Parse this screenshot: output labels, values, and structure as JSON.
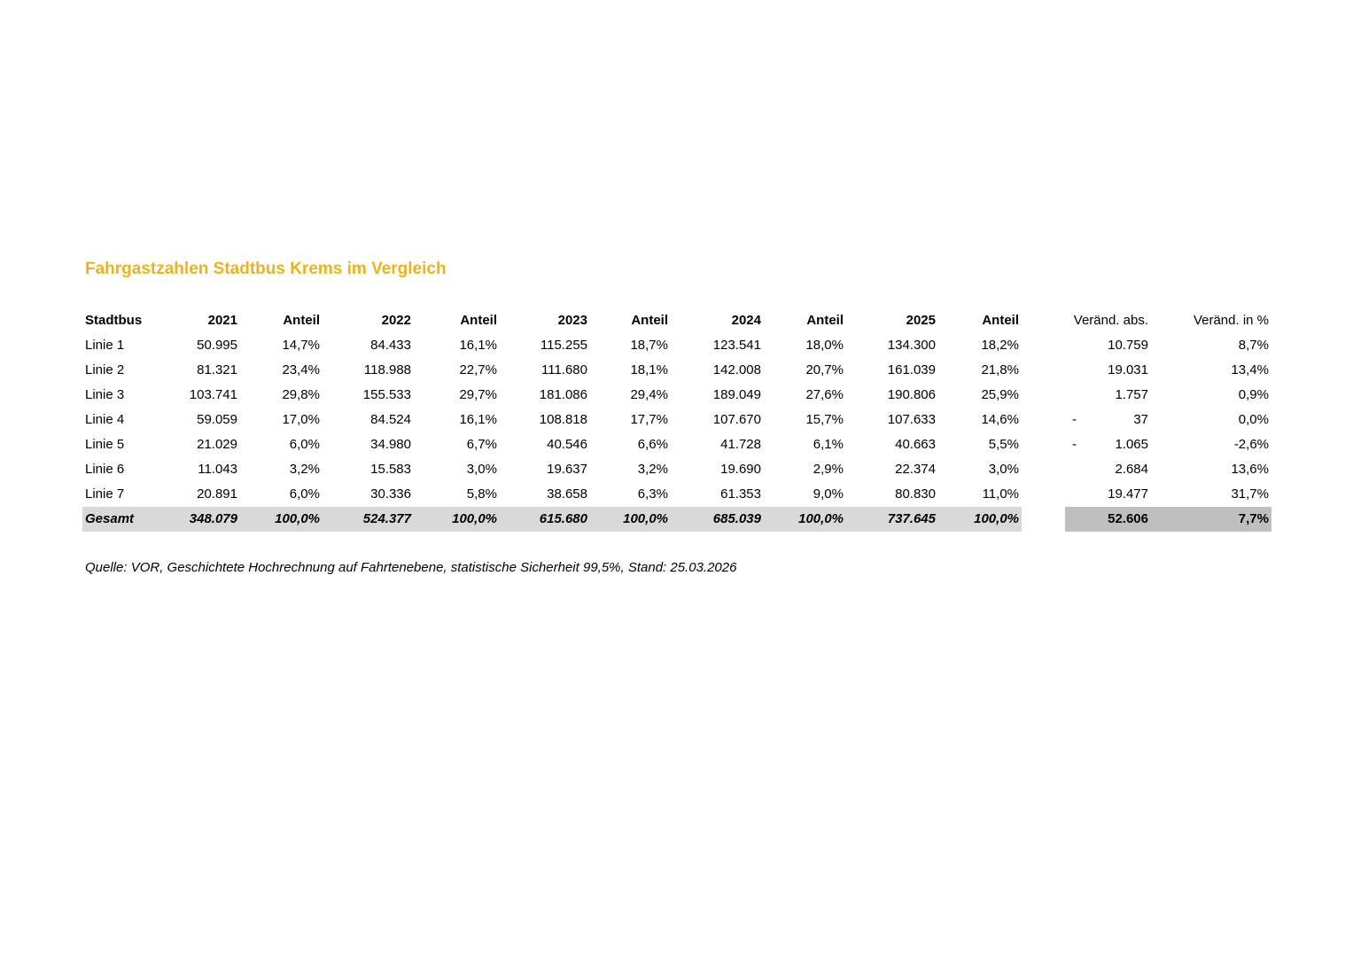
{
  "title": "Fahrgastzahlen Stadtbus Krems im Vergleich",
  "colors": {
    "title_accent": "#EEB21E",
    "total_row_band": "#D9D9D9",
    "total_change_band": "#BFBFBF"
  },
  "table": {
    "columns": [
      "Stadtbus",
      "2021",
      "Anteil",
      "2022",
      "Anteil",
      "2023",
      "Anteil",
      "2024",
      "Anteil",
      "2025",
      "Anteil",
      "Veränd. abs.",
      "Veränd. in %"
    ],
    "rows": [
      {
        "label": "Linie 1",
        "cells": [
          "50.995",
          "14,7%",
          "84.433",
          "16,1%",
          "115.255",
          "18,7%",
          "123.541",
          "18,0%",
          "134.300",
          "18,2%"
        ],
        "change_sign": "",
        "change_abs": "10.759",
        "change_pct": "8,7%"
      },
      {
        "label": "Linie 2",
        "cells": [
          "81.321",
          "23,4%",
          "118.988",
          "22,7%",
          "111.680",
          "18,1%",
          "142.008",
          "20,7%",
          "161.039",
          "21,8%"
        ],
        "change_sign": "",
        "change_abs": "19.031",
        "change_pct": "13,4%"
      },
      {
        "label": "Linie 3",
        "cells": [
          "103.741",
          "29,8%",
          "155.533",
          "29,7%",
          "181.086",
          "29,4%",
          "189.049",
          "27,6%",
          "190.806",
          "25,9%"
        ],
        "change_sign": "",
        "change_abs": "1.757",
        "change_pct": "0,9%"
      },
      {
        "label": "Linie 4",
        "cells": [
          "59.059",
          "17,0%",
          "84.524",
          "16,1%",
          "108.818",
          "17,7%",
          "107.670",
          "15,7%",
          "107.633",
          "14,6%"
        ],
        "change_sign": "-",
        "change_abs": "37",
        "change_pct": "0,0%"
      },
      {
        "label": "Linie 5",
        "cells": [
          "21.029",
          "6,0%",
          "34.980",
          "6,7%",
          "40.546",
          "6,6%",
          "41.728",
          "6,1%",
          "40.663",
          "5,5%"
        ],
        "change_sign": "-",
        "change_abs": "1.065",
        "change_pct": "-2,6%"
      },
      {
        "label": "Linie 6",
        "cells": [
          "11.043",
          "3,2%",
          "15.583",
          "3,0%",
          "19.637",
          "3,2%",
          "19.690",
          "2,9%",
          "22.374",
          "3,0%"
        ],
        "change_sign": "",
        "change_abs": "2.684",
        "change_pct": "13,6%"
      },
      {
        "label": "Linie 7",
        "cells": [
          "20.891",
          "6,0%",
          "30.336",
          "5,8%",
          "38.658",
          "6,3%",
          "61.353",
          "9,0%",
          "80.830",
          "11,0%"
        ],
        "change_sign": "",
        "change_abs": "19.477",
        "change_pct": "31,7%"
      }
    ],
    "total": {
      "label": "Gesamt",
      "cells": [
        "348.079",
        "100,0%",
        "524.377",
        "100,0%",
        "615.680",
        "100,0%",
        "685.039",
        "100,0%",
        "737.645",
        "100,0%"
      ],
      "change_abs": "52.606",
      "change_pct": "7,7%"
    }
  },
  "source": "Quelle: VOR, Geschichtete Hochrechnung auf Fahrtenebene, statistische Sicherheit 99,5%, Stand: 25.03.2026"
}
